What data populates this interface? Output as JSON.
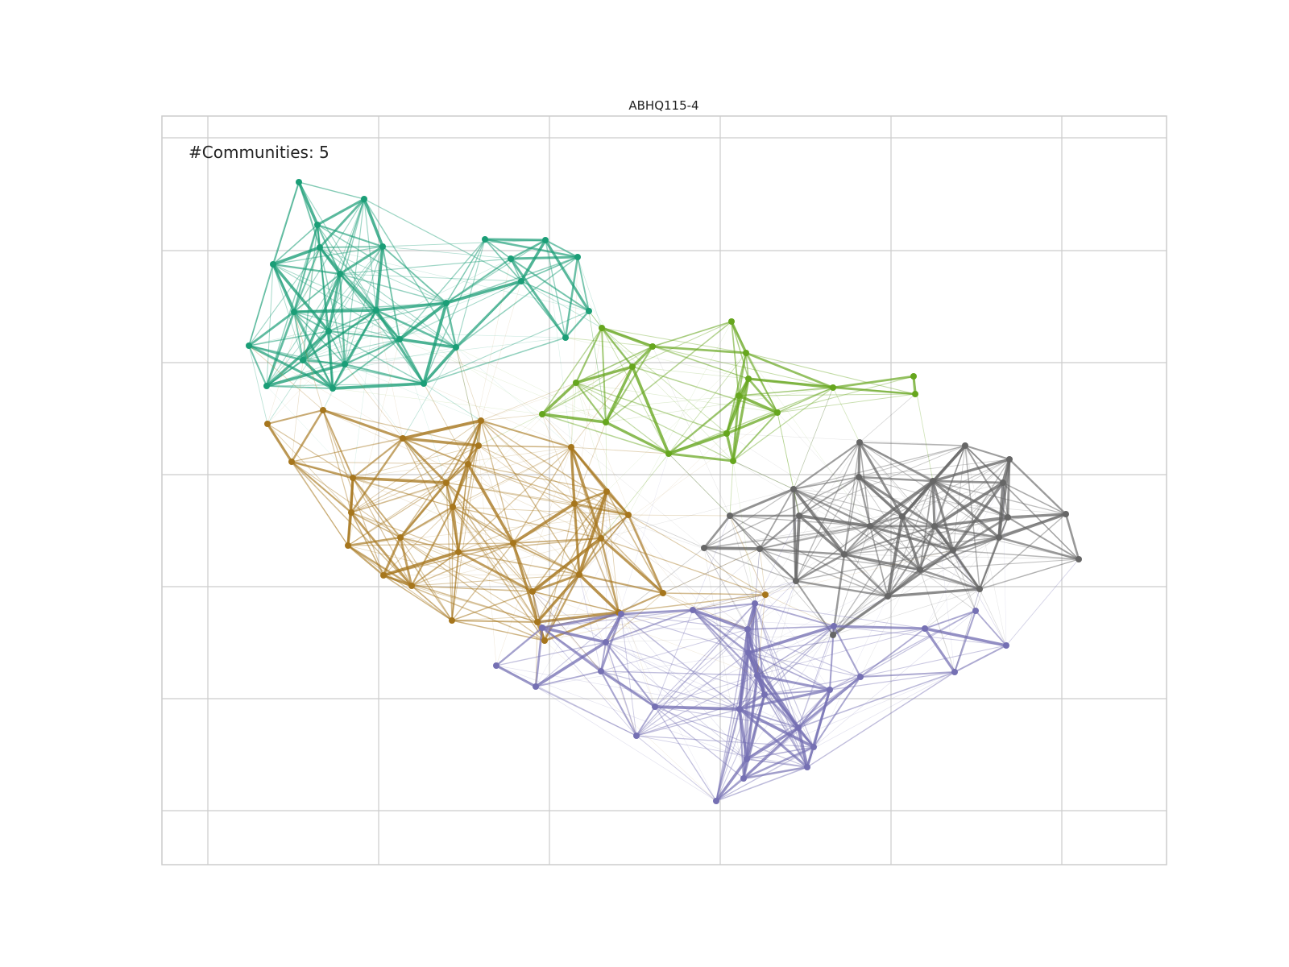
{
  "title": "ABHQ115-4",
  "annotation": "#Communities: 5",
  "communities": [
    {
      "id": "teal",
      "color": "#1b9e77"
    },
    {
      "id": "lime",
      "color": "#66a61e"
    },
    {
      "id": "ochre",
      "color": "#a6761d"
    },
    {
      "id": "gray",
      "color": "#666666"
    },
    {
      "id": "slate",
      "color": "#7570b3"
    }
  ],
  "grid": true,
  "frame_color": "#cccccc"
}
